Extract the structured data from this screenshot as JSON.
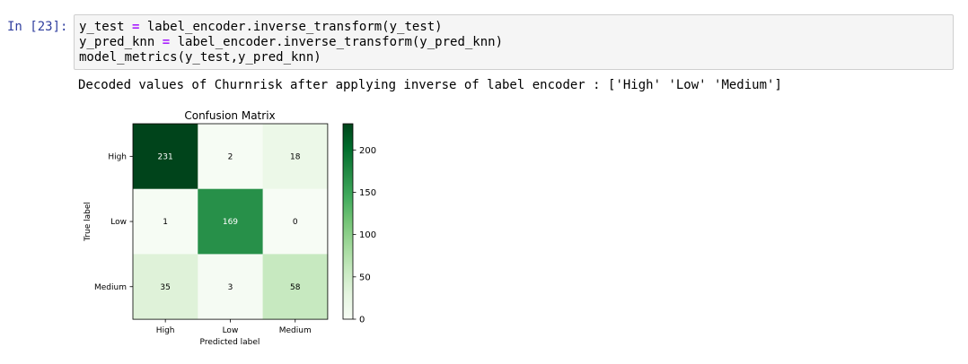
{
  "cell": {
    "prompt": "In [23]:",
    "code_lines": [
      {
        "lhs": "y_test ",
        "op": "=",
        "rhs": " label_encoder.inverse_transform(y_test)"
      },
      {
        "lhs": "y_pred_knn ",
        "op": "=",
        "rhs": " label_encoder.inverse_transform(y_pred_knn)"
      },
      {
        "lhs": "model_metrics(y_test,y_pred_knn)",
        "op": "",
        "rhs": ""
      }
    ],
    "output_text": "Decoded values of Churnrisk after applying inverse of label encoder : ['High' 'Low' 'Medium']"
  },
  "chart_data": {
    "type": "heatmap",
    "title": "Confusion Matrix",
    "xlabel": "Predicted label",
    "ylabel": "True label",
    "x_categories": [
      "High",
      "Low",
      "Medium"
    ],
    "y_categories": [
      "High",
      "Low",
      "Medium"
    ],
    "values": [
      [
        231,
        2,
        18
      ],
      [
        1,
        169,
        0
      ],
      [
        35,
        3,
        58
      ]
    ],
    "colormap": "Greens",
    "colorbar": {
      "range": [
        0,
        231
      ],
      "ticks": [
        "0",
        "50",
        "100",
        "150",
        "200"
      ]
    }
  }
}
